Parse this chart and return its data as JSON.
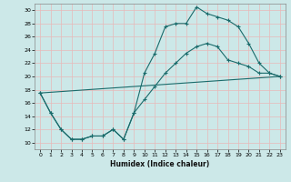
{
  "xlabel": "Humidex (Indice chaleur)",
  "bg_color": "#cce8e8",
  "line_color": "#1a6b6b",
  "grid_color": "#e8b8b8",
  "xlim": [
    -0.5,
    23.5
  ],
  "ylim": [
    9.0,
    31.0
  ],
  "yticks": [
    10,
    12,
    14,
    16,
    18,
    20,
    22,
    24,
    26,
    28,
    30
  ],
  "xticks": [
    0,
    1,
    2,
    3,
    4,
    5,
    6,
    7,
    8,
    9,
    10,
    11,
    12,
    13,
    14,
    15,
    16,
    17,
    18,
    19,
    20,
    21,
    22,
    23
  ],
  "line1_x": [
    0,
    1,
    2,
    3,
    4,
    5,
    6,
    7,
    8,
    9,
    10,
    11,
    12,
    13,
    14,
    15,
    16,
    17,
    18,
    19,
    20,
    21,
    22,
    23
  ],
  "line1_y": [
    17.5,
    14.5,
    12.0,
    10.5,
    10.5,
    11.0,
    11.0,
    12.0,
    10.5,
    14.5,
    20.5,
    23.5,
    27.5,
    28.0,
    28.0,
    30.5,
    29.5,
    29.0,
    28.5,
    27.5,
    25.0,
    22.0,
    20.5,
    20.0
  ],
  "line2_x": [
    0,
    1,
    2,
    3,
    4,
    5,
    6,
    7,
    8,
    9,
    10,
    11,
    12,
    13,
    14,
    15,
    16,
    17,
    18,
    19,
    20,
    21,
    22,
    23
  ],
  "line2_y": [
    17.5,
    14.5,
    12.0,
    10.5,
    10.5,
    11.0,
    11.0,
    12.0,
    10.5,
    14.5,
    16.5,
    18.5,
    20.5,
    22.0,
    23.5,
    24.5,
    25.0,
    24.5,
    22.5,
    22.0,
    21.5,
    20.5,
    20.5,
    20.0
  ],
  "line3_x": [
    0,
    23
  ],
  "line3_y": [
    17.5,
    20.0
  ]
}
